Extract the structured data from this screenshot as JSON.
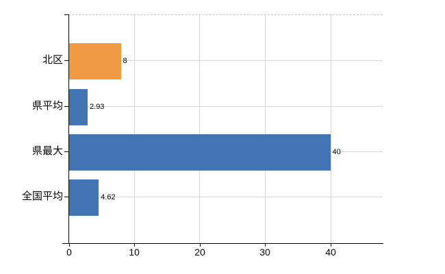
{
  "chart_data": {
    "type": "bar",
    "orientation": "horizontal",
    "categories": [
      "北区",
      "県平均",
      "県最大",
      "全国平均"
    ],
    "values": [
      8,
      2.93,
      40,
      4.62
    ],
    "value_labels": [
      "8",
      "2.93",
      "40",
      "4.62"
    ],
    "bar_colors": [
      "#F09B44",
      "#4273B2",
      "#4273B2",
      "#4273B2"
    ],
    "x_ticks": [
      0,
      10,
      20,
      30,
      40
    ],
    "x_tick_labels": [
      "0",
      "10",
      "20",
      "30",
      "40"
    ],
    "xlim": [
      0,
      48
    ],
    "grid": true,
    "legend_position": "none",
    "highlight_category": "北区"
  },
  "styles": {
    "highlight_color": "#F09B44",
    "base_color": "#4273B2",
    "gridline_color": "#D5D8D2",
    "top_border_color": "#C8C8C8",
    "axis_color": "#000000",
    "text_color": "#000000",
    "background": "#FFFFFF"
  }
}
